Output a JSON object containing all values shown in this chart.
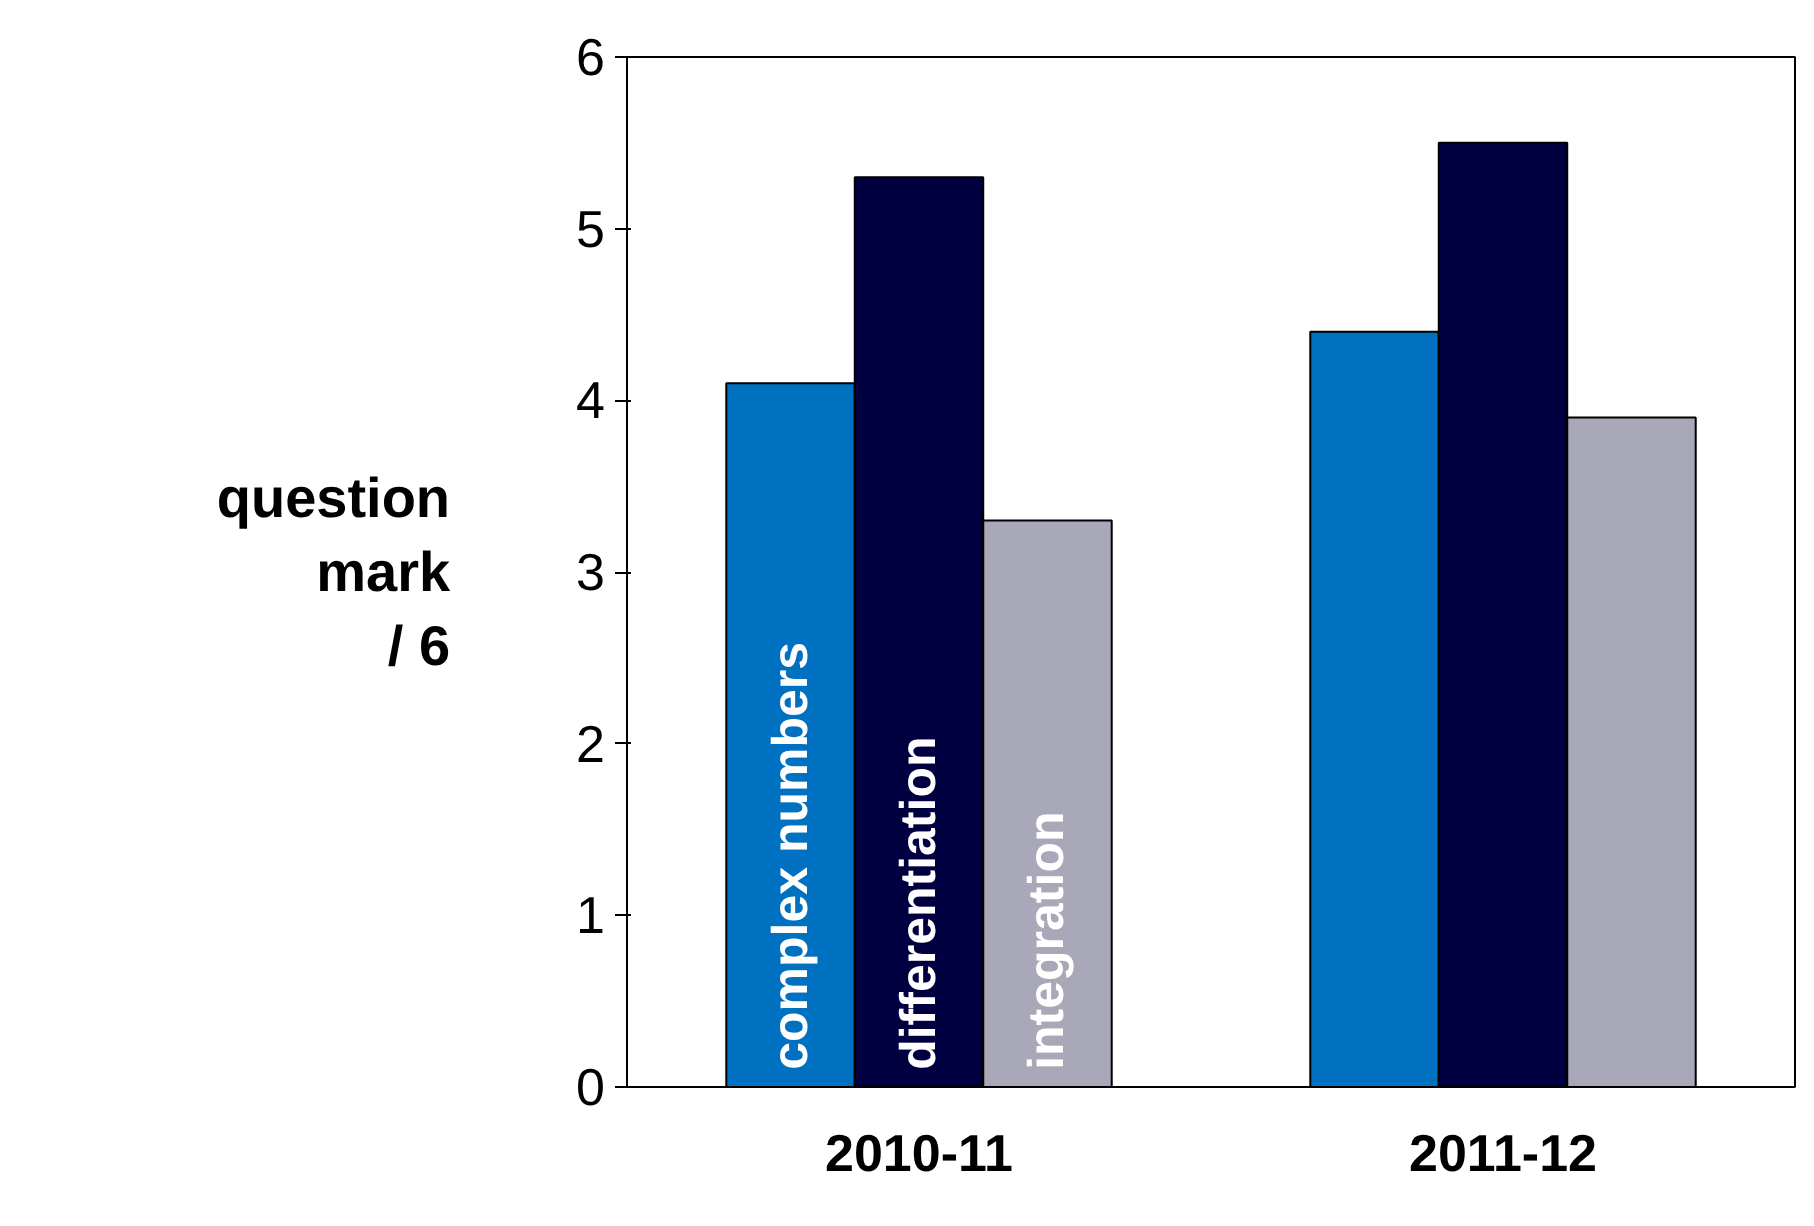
{
  "chart_data": {
    "type": "bar",
    "ylabel": "question\nmark\n/ 6",
    "categories": [
      "2010-11",
      "2011-12"
    ],
    "series": [
      {
        "name": "complex numbers",
        "color": "#0070c0",
        "values": [
          4.1,
          4.4
        ]
      },
      {
        "name": "differentiation",
        "color": "#000040",
        "values": [
          5.3,
          5.5
        ]
      },
      {
        "name": "integration",
        "color": "#a8a8b8",
        "values": [
          3.3,
          3.9
        ]
      }
    ],
    "ylim": [
      0,
      6
    ],
    "yticks": [
      0,
      1,
      2,
      3,
      4,
      5,
      6
    ],
    "grid": false
  }
}
